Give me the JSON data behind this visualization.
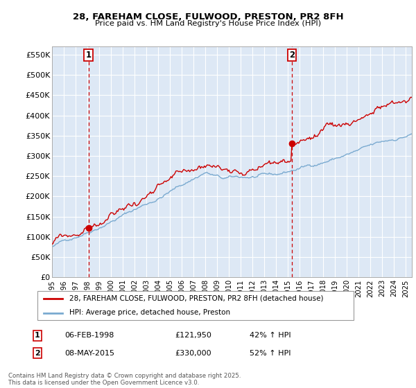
{
  "title1": "28, FAREHAM CLOSE, FULWOOD, PRESTON, PR2 8FH",
  "title2": "Price paid vs. HM Land Registry's House Price Index (HPI)",
  "ylim": [
    0,
    570000
  ],
  "yticks": [
    0,
    50000,
    100000,
    150000,
    200000,
    250000,
    300000,
    350000,
    400000,
    450000,
    500000,
    550000
  ],
  "ytick_labels": [
    "£0",
    "£50K",
    "£100K",
    "£150K",
    "£200K",
    "£250K",
    "£300K",
    "£350K",
    "£400K",
    "£450K",
    "£500K",
    "£550K"
  ],
  "sale1_date": 1998.09,
  "sale1_price": 121950,
  "sale2_date": 2015.35,
  "sale2_price": 330000,
  "red_line_color": "#cc0000",
  "blue_line_color": "#7aaad0",
  "dot_color": "#cc0000",
  "vline_color": "#cc0000",
  "shaded_color": "#dde8f5",
  "grid_color": "#cccccc",
  "legend1": "28, FAREHAM CLOSE, FULWOOD, PRESTON, PR2 8FH (detached house)",
  "legend2": "HPI: Average price, detached house, Preston",
  "table_row1": [
    "1",
    "06-FEB-1998",
    "£121,950",
    "42% ↑ HPI"
  ],
  "table_row2": [
    "2",
    "08-MAY-2015",
    "£330,000",
    "52% ↑ HPI"
  ],
  "footnote": "Contains HM Land Registry data © Crown copyright and database right 2025.\nThis data is licensed under the Open Government Licence v3.0.",
  "xmin": 1995.0,
  "xmax": 2025.5
}
